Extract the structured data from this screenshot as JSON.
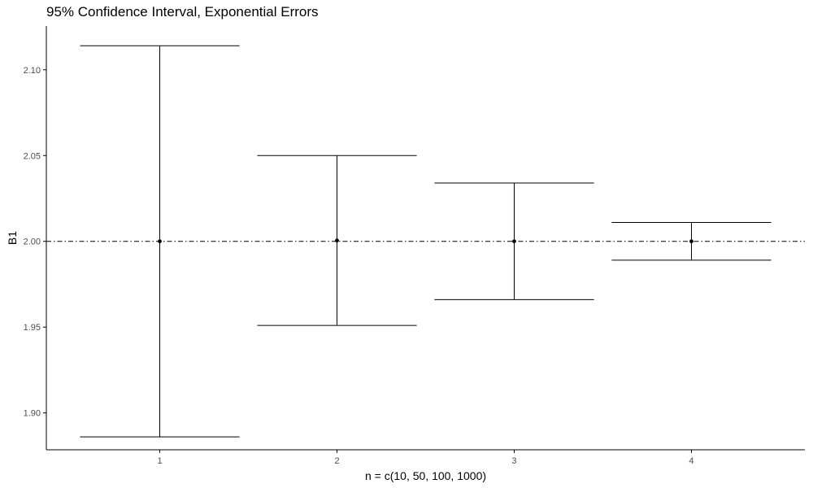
{
  "chart_data": {
    "type": "errorbar",
    "title": "95% Confidence Interval, Exponential Errors",
    "xlabel": "n = c(10, 50, 100, 1000)",
    "ylabel": "B1",
    "x": [
      1,
      2,
      3,
      4
    ],
    "x_tick_labels": [
      "1",
      "2",
      "3",
      "4"
    ],
    "estimate": [
      2.0,
      2.0005,
      2.0,
      2.0
    ],
    "lower": [
      1.886,
      1.951,
      1.966,
      1.989
    ],
    "upper": [
      2.114,
      2.05,
      2.034,
      2.011
    ],
    "reference_line": 2.0,
    "y_ticks": [
      1.9,
      1.95,
      2.0,
      2.05,
      2.1
    ],
    "y_tick_labels": [
      "1.90",
      "1.95",
      "2.00",
      "2.05",
      "2.10"
    ],
    "xlim": [
      0.36,
      4.64
    ],
    "ylim": [
      1.8785,
      2.1255
    ],
    "grid": false,
    "colors": {
      "marks": "#000000",
      "axis": "#000000",
      "tick_text": "#4d4d4d"
    }
  }
}
